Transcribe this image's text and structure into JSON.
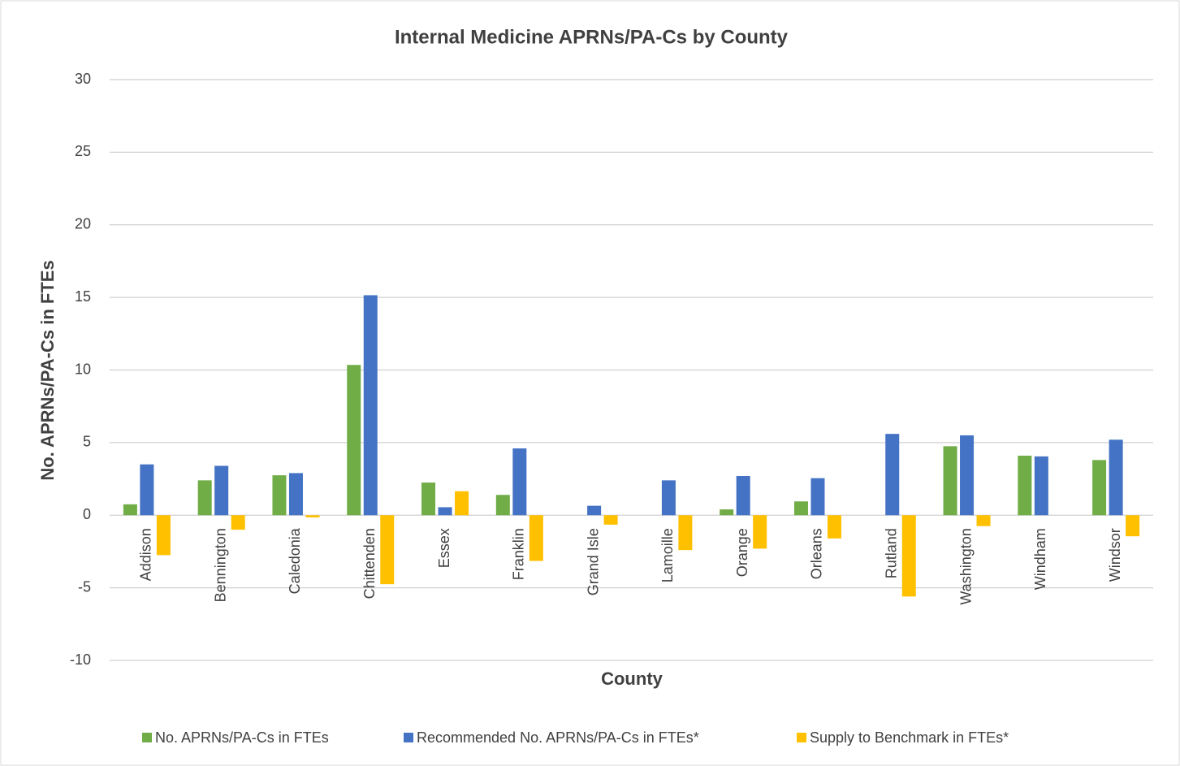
{
  "chart_data": {
    "type": "bar",
    "title": "Internal Medicine APRNs/PA-Cs by County",
    "x_label": "County",
    "y_label": "No. APRNs/PA-Cs in FTEs",
    "categories": [
      "Addison",
      "Bennington",
      "Caledonia",
      "Chittenden",
      "Essex",
      "Franklin",
      "Grand Isle",
      "Lamoille",
      "Orange",
      "Orleans",
      "Rutland",
      "Washington",
      "Windham",
      "Windsor"
    ],
    "series": [
      {
        "name": "No. APRNs/PA-Cs in FTEs",
        "color": "#70ad47",
        "values": [
          0.75,
          2.4,
          2.75,
          10.35,
          2.25,
          1.4,
          0,
          0,
          0.4,
          0.95,
          0,
          4.75,
          4.1,
          3.8
        ]
      },
      {
        "name": "Recommended No. APRNs/PA-Cs in FTEs*",
        "color": "#4472c4",
        "values": [
          3.5,
          3.4,
          2.9,
          15.15,
          0.55,
          4.6,
          0.65,
          2.4,
          2.7,
          2.55,
          5.6,
          5.5,
          4.05,
          5.2
        ]
      },
      {
        "name": "Supply to Benchmark in FTEs*",
        "color": "#ffc000",
        "values": [
          -2.75,
          -1.0,
          -0.15,
          -4.75,
          1.65,
          -3.15,
          -0.65,
          -2.4,
          -2.3,
          -1.6,
          -5.6,
          -0.75,
          0,
          -1.45
        ]
      }
    ],
    "ylim": [
      -10,
      30
    ],
    "yticks": [
      -10,
      -5,
      0,
      5,
      10,
      15,
      20,
      25,
      30
    ],
    "grid": true,
    "legend": "bottom"
  }
}
